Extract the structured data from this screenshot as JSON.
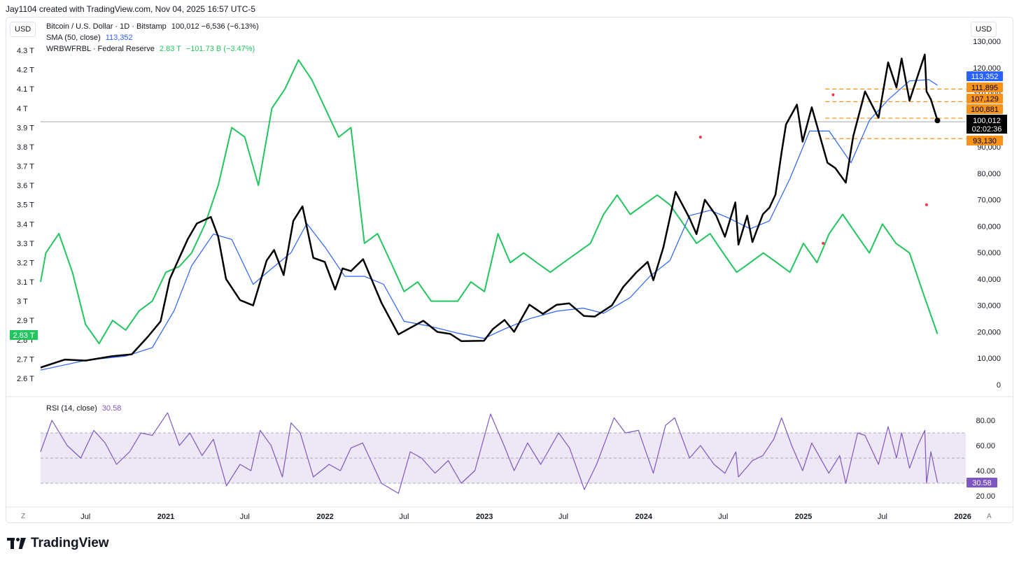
{
  "header": {
    "created_by": "Jay1104 created with TradingView.com, Nov 04, 2025 16:57 UTC-5"
  },
  "currency": {
    "left": "USD",
    "right": "USD"
  },
  "legend": {
    "main": {
      "symbol": "Bitcoin / U.S. Dollar · 1D · Bitstamp",
      "stats": "100,012  −6,536 (−6.13%)"
    },
    "sma": {
      "label": "SMA (50, close)",
      "value": "113,352"
    },
    "fed": {
      "label": "WRBWFRBL · Federal Reserve",
      "value": "2.83 T",
      "change": "−101.73 B (−3.47%)"
    },
    "rsi": {
      "label": "RSI (14, close)",
      "value": "30.58"
    }
  },
  "colors": {
    "btc": "#000000",
    "sma": "#2962ff",
    "fed": "#22c55e",
    "rsi": "#7e57c2",
    "rsi_band": "#ede7f6",
    "orange": "#f7931a",
    "blue_tag": "#2962ff",
    "green_tag": "#22c55e",
    "black_tag": "#000000",
    "grid_h": "#9598a1"
  },
  "brand": {
    "name": "TradingView"
  },
  "corners": {
    "left": "Z",
    "right": "A"
  },
  "price_tags": {
    "sma": "113,352",
    "orange": [
      "111,895",
      "107,129",
      "100,881",
      "93,130"
    ],
    "last": "100,012",
    "countdown": "02:02:36",
    "fed_left": "2.83 T",
    "rsi": "30.58"
  },
  "chart_data": [
    {
      "type": "line",
      "title": "Bitcoin / U.S. Dollar · 1D · Bitstamp",
      "x_ticks": [
        "Jul",
        "2021",
        "Jul",
        "2022",
        "Jul",
        "2023",
        "Jul",
        "2024",
        "Jul",
        "2025",
        "Jul",
        "2026"
      ],
      "right_axis": {
        "ticks": [
          "0",
          "10,000",
          "20,000",
          "30,000",
          "40,000",
          "50,000",
          "60,000",
          "70,000",
          "80,000",
          "90,000",
          "100,000",
          "110,000",
          "120,000",
          "130,000"
        ],
        "ylim": [
          0,
          130000
        ]
      },
      "left_axis": {
        "ticks": [
          "2.6 T",
          "2.7 T",
          "2.8 T",
          "2.9 T",
          "3 T",
          "3.1 T",
          "3.2 T",
          "3.3 T",
          "3.4 T",
          "3.5 T",
          "3.6 T",
          "3.7 T",
          "3.8 T",
          "3.9 T",
          "4 T",
          "4.1 T",
          "4.2 T",
          "4.3 T"
        ],
        "ylim": [
          2.6,
          4.3
        ]
      },
      "series": [
        {
          "name": "BTCUSD",
          "axis": "right",
          "x": [
            "2020-03-20",
            "2020-05-15",
            "2020-07-01",
            "2020-09-01",
            "2020-10-15",
            "2020-11-20",
            "2020-12-20",
            "2021-01-10",
            "2021-02-20",
            "2021-03-13",
            "2021-04-14",
            "2021-05-01",
            "2021-05-19",
            "2021-06-20",
            "2021-07-20",
            "2021-08-20",
            "2021-09-06",
            "2021-09-28",
            "2021-10-20",
            "2021-11-10",
            "2021-12-05",
            "2021-12-31",
            "2022-01-24",
            "2022-02-10",
            "2022-03-01",
            "2022-03-29",
            "2022-05-10",
            "2022-06-18",
            "2022-07-15",
            "2022-08-14",
            "2022-09-15",
            "2022-10-15",
            "2022-11-09",
            "2022-12-31",
            "2023-01-20",
            "2023-02-16",
            "2023-03-10",
            "2023-04-14",
            "2023-05-15",
            "2023-06-15",
            "2023-07-14",
            "2023-08-17",
            "2023-09-11",
            "2023-10-20",
            "2023-11-15",
            "2023-12-15",
            "2024-01-10",
            "2024-01-23",
            "2024-02-15",
            "2024-03-14",
            "2024-04-15",
            "2024-05-01",
            "2024-05-20",
            "2024-06-15",
            "2024-07-05",
            "2024-07-29",
            "2024-08-05",
            "2024-08-25",
            "2024-09-06",
            "2024-09-30",
            "2024-10-15",
            "2024-10-29",
            "2024-11-12",
            "2024-11-22",
            "2024-12-17",
            "2024-12-30",
            "2025-01-20",
            "2025-02-25",
            "2025-03-15",
            "2025-04-08",
            "2025-04-25",
            "2025-05-22",
            "2025-06-22",
            "2025-07-14",
            "2025-08-02",
            "2025-08-14",
            "2025-09-01",
            "2025-09-20",
            "2025-10-06",
            "2025-10-10",
            "2025-10-20",
            "2025-11-04"
          ],
          "values": [
            6500,
            9500,
            9100,
            10800,
            11500,
            18000,
            24000,
            40000,
            55000,
            61000,
            63500,
            56000,
            40000,
            32000,
            30000,
            47000,
            51000,
            41500,
            62000,
            67500,
            48000,
            46500,
            36000,
            44000,
            43000,
            47500,
            31000,
            19000,
            21500,
            24200,
            20000,
            19200,
            16500,
            16600,
            21000,
            24500,
            20000,
            30300,
            26800,
            30200,
            30800,
            26000,
            25800,
            30000,
            37000,
            42500,
            46500,
            39500,
            52000,
            73000,
            63000,
            57000,
            70000,
            64000,
            56000,
            69000,
            53000,
            64000,
            54000,
            64500,
            67000,
            72000,
            88000,
            98500,
            106000,
            92000,
            105000,
            84000,
            82000,
            76500,
            94000,
            111000,
            101000,
            122000,
            112500,
            123500,
            107500,
            117000,
            125000,
            111000,
            108000,
            100012
          ]
        },
        {
          "name": "SMA (50, close)",
          "axis": "right",
          "x": [
            "2020-03-20",
            "2020-07-01",
            "2020-10-01",
            "2020-12-01",
            "2021-01-20",
            "2021-03-01",
            "2021-04-20",
            "2021-06-01",
            "2021-07-20",
            "2021-09-01",
            "2021-10-15",
            "2021-11-20",
            "2022-01-01",
            "2022-02-15",
            "2022-04-01",
            "2022-05-15",
            "2022-07-01",
            "2022-09-01",
            "2022-11-01",
            "2022-12-31",
            "2023-02-15",
            "2023-04-15",
            "2023-06-15",
            "2023-08-15",
            "2023-10-01",
            "2023-12-01",
            "2024-01-15",
            "2024-03-01",
            "2024-04-15",
            "2024-06-01",
            "2024-07-15",
            "2024-09-01",
            "2024-10-15",
            "2024-12-01",
            "2025-01-15",
            "2025-03-01",
            "2025-04-20",
            "2025-06-01",
            "2025-07-15",
            "2025-09-01",
            "2025-10-15",
            "2025-11-04"
          ],
          "values": [
            5500,
            9200,
            10800,
            14000,
            28000,
            45000,
            57000,
            55000,
            38000,
            44000,
            50000,
            61000,
            52000,
            41000,
            41000,
            38000,
            24000,
            22000,
            19500,
            17500,
            21000,
            25000,
            27800,
            29000,
            27000,
            33000,
            41000,
            47000,
            64000,
            66000,
            63000,
            59000,
            62000,
            78000,
            96000,
            96000,
            84000,
            100000,
            108000,
            115000,
            115500,
            113352
          ]
        },
        {
          "name": "WRBWFRBL · Federal Reserve",
          "axis": "left",
          "x": [
            "2020-03-20",
            "2020-04-01",
            "2020-05-01",
            "2020-06-01",
            "2020-07-01",
            "2020-08-01",
            "2020-09-01",
            "2020-10-01",
            "2020-11-01",
            "2020-12-01",
            "2021-01-01",
            "2021-02-01",
            "2021-03-01",
            "2021-04-01",
            "2021-05-01",
            "2021-06-01",
            "2021-07-01",
            "2021-08-01",
            "2021-09-01",
            "2021-10-01",
            "2021-11-01",
            "2021-12-01",
            "2022-01-01",
            "2022-02-01",
            "2022-03-01",
            "2022-04-01",
            "2022-05-01",
            "2022-06-01",
            "2022-07-01",
            "2022-08-01",
            "2022-09-01",
            "2022-10-01",
            "2022-11-01",
            "2022-12-01",
            "2023-01-01",
            "2023-02-01",
            "2023-03-01",
            "2023-04-01",
            "2023-05-01",
            "2023-06-01",
            "2023-07-01",
            "2023-08-01",
            "2023-09-01",
            "2023-10-01",
            "2023-11-01",
            "2023-12-01",
            "2024-01-01",
            "2024-02-01",
            "2024-03-01",
            "2024-04-01",
            "2024-05-01",
            "2024-06-01",
            "2024-07-01",
            "2024-08-01",
            "2024-09-01",
            "2024-10-01",
            "2024-11-01",
            "2024-12-01",
            "2025-01-01",
            "2025-02-01",
            "2025-03-01",
            "2025-04-01",
            "2025-05-01",
            "2025-06-01",
            "2025-07-01",
            "2025-08-01",
            "2025-09-01",
            "2025-10-01",
            "2025-11-04"
          ],
          "values": [
            3.1,
            3.25,
            3.35,
            3.15,
            2.88,
            2.78,
            2.9,
            2.85,
            2.95,
            3.0,
            3.15,
            3.18,
            3.25,
            3.4,
            3.6,
            3.9,
            3.85,
            3.6,
            4.0,
            4.1,
            4.25,
            4.15,
            4.0,
            3.85,
            3.9,
            3.3,
            3.35,
            3.2,
            3.05,
            3.1,
            3.0,
            3.0,
            3.0,
            3.1,
            3.05,
            3.35,
            3.2,
            3.25,
            3.2,
            3.15,
            3.2,
            3.25,
            3.3,
            3.45,
            3.55,
            3.45,
            3.5,
            3.55,
            3.5,
            3.4,
            3.3,
            3.35,
            3.25,
            3.15,
            3.2,
            3.25,
            3.2,
            3.15,
            3.3,
            3.2,
            3.35,
            3.45,
            3.35,
            3.25,
            3.4,
            3.3,
            3.25,
            3.05,
            2.83
          ]
        }
      ],
      "price_lines": [
        111895,
        107129,
        100881,
        93130
      ],
      "markers": [
        {
          "x": "2024-05-10",
          "y": 3.85
        },
        {
          "x": "2025-03-10",
          "y": 4.07
        },
        {
          "x": "2025-10-10",
          "y": 3.5
        },
        {
          "x": "2025-02-15",
          "y": 3.3
        }
      ]
    },
    {
      "type": "line",
      "title": "RSI (14, close)",
      "x_ticks": [
        "Jul",
        "2021",
        "Jul",
        "2022",
        "Jul",
        "2023",
        "Jul",
        "2024",
        "Jul",
        "2025",
        "Jul",
        "2026"
      ],
      "y_ticks": [
        "20.00",
        "40.00",
        "60.00",
        "80.00"
      ],
      "ylim": [
        15,
        92
      ],
      "band": [
        30,
        70
      ],
      "series": [
        {
          "name": "RSI",
          "x": [
            "2020-03-20",
            "2020-04-15",
            "2020-05-20",
            "2020-06-20",
            "2020-07-20",
            "2020-08-15",
            "2020-09-10",
            "2020-10-10",
            "2020-11-05",
            "2020-12-01",
            "2021-01-05",
            "2021-02-01",
            "2021-02-25",
            "2021-03-25",
            "2021-04-20",
            "2021-05-20",
            "2021-06-20",
            "2021-07-15",
            "2021-08-05",
            "2021-08-30",
            "2021-09-25",
            "2021-10-15",
            "2021-11-05",
            "2021-12-05",
            "2022-01-10",
            "2022-02-05",
            "2022-03-01",
            "2022-03-28",
            "2022-05-10",
            "2022-06-18",
            "2022-07-15",
            "2022-08-10",
            "2022-09-10",
            "2022-10-10",
            "2022-11-09",
            "2022-12-10",
            "2023-01-15",
            "2023-02-15",
            "2023-03-10",
            "2023-04-10",
            "2023-05-10",
            "2023-06-20",
            "2023-07-15",
            "2023-08-18",
            "2023-09-15",
            "2023-10-25",
            "2023-11-20",
            "2023-12-20",
            "2024-01-23",
            "2024-02-20",
            "2024-03-12",
            "2024-04-15",
            "2024-05-10",
            "2024-06-10",
            "2024-07-05",
            "2024-07-30",
            "2024-08-05",
            "2024-09-06",
            "2024-09-30",
            "2024-10-25",
            "2024-11-12",
            "2024-12-05",
            "2024-12-30",
            "2025-01-20",
            "2025-02-28",
            "2025-03-25",
            "2025-04-08",
            "2025-05-05",
            "2025-05-22",
            "2025-06-22",
            "2025-07-14",
            "2025-08-02",
            "2025-08-14",
            "2025-09-01",
            "2025-09-20",
            "2025-10-06",
            "2025-10-10",
            "2025-10-20",
            "2025-11-04"
          ],
          "values": [
            55,
            80,
            60,
            50,
            72,
            62,
            45,
            55,
            70,
            68,
            86,
            60,
            70,
            52,
            65,
            28,
            45,
            40,
            72,
            60,
            35,
            78,
            70,
            35,
            45,
            40,
            58,
            62,
            30,
            22,
            55,
            50,
            38,
            48,
            30,
            40,
            85,
            60,
            40,
            62,
            45,
            70,
            58,
            25,
            45,
            82,
            70,
            72,
            38,
            76,
            82,
            50,
            60,
            45,
            38,
            55,
            35,
            48,
            52,
            65,
            82,
            60,
            40,
            62,
            38,
            52,
            30,
            70,
            68,
            45,
            75,
            50,
            70,
            42,
            60,
            72,
            30,
            55,
            30.58
          ]
        }
      ]
    }
  ]
}
